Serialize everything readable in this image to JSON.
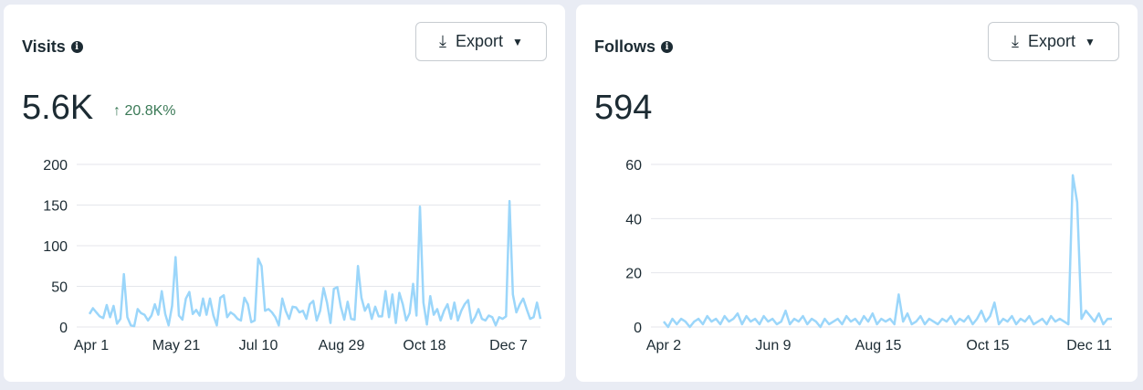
{
  "cards": [
    {
      "title": "Visits",
      "export_label": "Export",
      "value": "5.6K",
      "delta": "20.8K%",
      "delta_icon": "arrow-up-icon"
    },
    {
      "title": "Follows",
      "export_label": "Export",
      "value": "594"
    }
  ],
  "colors": {
    "line": "#9bd6fa",
    "grid": "#e4e6eb",
    "text": "#1c2b33",
    "positive": "#3b7a57"
  },
  "chart_data": [
    {
      "type": "line",
      "title": "Visits",
      "ylim": [
        0,
        200
      ],
      "yticks": [
        "0",
        "50",
        "100",
        "150",
        "200"
      ],
      "xticks": [
        "Apr 1",
        "May 21",
        "Jul 10",
        "Aug 29",
        "Oct 18",
        "Dec 7"
      ],
      "values": [
        16,
        23,
        18,
        13,
        11,
        27,
        12,
        26,
        4,
        10,
        65,
        12,
        2,
        1,
        22,
        17,
        15,
        8,
        14,
        28,
        15,
        44,
        16,
        2,
        26,
        86,
        14,
        9,
        35,
        43,
        16,
        21,
        14,
        35,
        15,
        35,
        14,
        2,
        36,
        39,
        12,
        18,
        15,
        10,
        8,
        36,
        28,
        6,
        8,
        84,
        75,
        20,
        22,
        18,
        12,
        2,
        35,
        20,
        10,
        25,
        24,
        18,
        20,
        10,
        28,
        32,
        8,
        20,
        48,
        30,
        5,
        47,
        49,
        25,
        9,
        31,
        10,
        9,
        75,
        36,
        20,
        28,
        10,
        25,
        13,
        13,
        44,
        12,
        40,
        5,
        42,
        28,
        8,
        17,
        53,
        14,
        148,
        30,
        3,
        38,
        15,
        22,
        8,
        20,
        28,
        10,
        30,
        8,
        20,
        28,
        33,
        5,
        12,
        22,
        10,
        8,
        14,
        12,
        2,
        12,
        10,
        13,
        155,
        40,
        18,
        28,
        35,
        22,
        10,
        12,
        30,
        10
      ]
    },
    {
      "type": "line",
      "title": "Follows",
      "ylim": [
        0,
        60
      ],
      "yticks": [
        "0",
        "20",
        "40",
        "60"
      ],
      "xticks": [
        "Apr 2",
        "Jun 9",
        "Aug 15",
        "Oct 15",
        "Dec 11"
      ],
      "values": [
        2,
        0,
        3,
        1,
        3,
        2,
        0,
        2,
        3,
        1,
        4,
        2,
        3,
        1,
        4,
        2,
        3,
        5,
        1,
        4,
        2,
        3,
        1,
        4,
        2,
        3,
        1,
        2,
        6,
        1,
        3,
        2,
        4,
        1,
        3,
        2,
        0,
        3,
        1,
        2,
        3,
        1,
        4,
        2,
        3,
        1,
        4,
        2,
        5,
        1,
        3,
        2,
        3,
        1,
        12,
        2,
        5,
        1,
        2,
        4,
        1,
        3,
        2,
        1,
        3,
        2,
        4,
        1,
        3,
        2,
        4,
        1,
        3,
        6,
        2,
        4,
        9,
        1,
        3,
        2,
        4,
        1,
        3,
        2,
        4,
        1,
        2,
        3,
        1,
        4,
        2,
        3,
        2,
        1,
        56,
        46,
        3,
        6,
        4,
        2,
        5,
        1,
        3,
        3
      ]
    }
  ]
}
